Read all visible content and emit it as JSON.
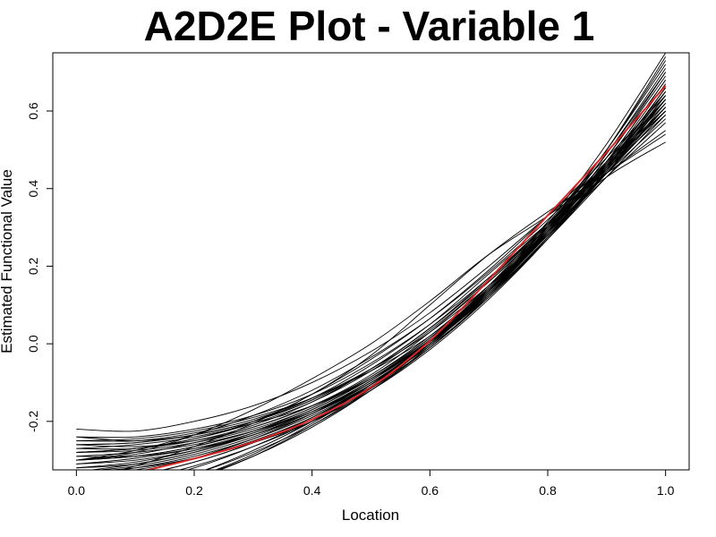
{
  "chart_data": {
    "type": "line",
    "title": "A2D2E Plot - Variable 1",
    "xlabel": "Location",
    "ylabel": "Estimated Functional Value",
    "xlim": [
      -0.04,
      1.04
    ],
    "ylim": [
      -0.325,
      0.75
    ],
    "x_ticks": [
      0.0,
      0.2,
      0.4,
      0.6,
      0.8,
      1.0
    ],
    "x_tick_labels": [
      "0.0",
      "0.2",
      "0.4",
      "0.6",
      "0.8",
      "1.0"
    ],
    "y_ticks": [
      -0.2,
      0.0,
      0.2,
      0.4,
      0.6
    ],
    "y_tick_labels": [
      "-0.2",
      "0.0",
      "0.2",
      "0.4",
      "0.6"
    ],
    "grid": false,
    "x": [
      0.0,
      0.1,
      0.2,
      0.3,
      0.4,
      0.5,
      0.6,
      0.7,
      0.8,
      0.9,
      1.0
    ],
    "colors": {
      "replicates": "#000000",
      "mean": "#d62728"
    },
    "series": [
      {
        "values": [
          -0.37,
          -0.333,
          -0.296,
          -0.253,
          -0.195,
          -0.112,
          0.008,
          0.165,
          0.331,
          0.494,
          0.665
        ],
        "color": "#d62728",
        "highlight": true
      },
      {
        "values": [
          -0.22,
          -0.225,
          -0.2,
          -0.16,
          -0.1,
          -0.02,
          0.08,
          0.2,
          0.33,
          0.46,
          0.6
        ]
      },
      {
        "values": [
          -0.24,
          -0.24,
          -0.22,
          -0.185,
          -0.13,
          -0.05,
          0.05,
          0.17,
          0.31,
          0.46,
          0.61
        ]
      },
      {
        "values": [
          -0.26,
          -0.255,
          -0.235,
          -0.2,
          -0.145,
          -0.065,
          0.04,
          0.165,
          0.31,
          0.465,
          0.63
        ]
      },
      {
        "values": [
          -0.28,
          -0.27,
          -0.245,
          -0.205,
          -0.15,
          -0.07,
          0.035,
          0.16,
          0.3,
          0.45,
          0.61
        ]
      },
      {
        "values": [
          -0.3,
          -0.29,
          -0.265,
          -0.225,
          -0.17,
          -0.09,
          0.015,
          0.145,
          0.295,
          0.455,
          0.63
        ]
      },
      {
        "values": [
          -0.32,
          -0.31,
          -0.28,
          -0.235,
          -0.175,
          -0.095,
          0.01,
          0.14,
          0.29,
          0.455,
          0.64
        ]
      },
      {
        "values": [
          -0.34,
          -0.32,
          -0.29,
          -0.245,
          -0.185,
          -0.105,
          0.0,
          0.13,
          0.285,
          0.46,
          0.66
        ]
      },
      {
        "values": [
          -0.29,
          -0.28,
          -0.26,
          -0.225,
          -0.175,
          -0.1,
          0.0,
          0.125,
          0.275,
          0.44,
          0.62
        ]
      },
      {
        "values": [
          -0.27,
          -0.26,
          -0.24,
          -0.205,
          -0.16,
          -0.09,
          0.005,
          0.125,
          0.27,
          0.43,
          0.59
        ]
      },
      {
        "values": [
          -0.31,
          -0.3,
          -0.275,
          -0.235,
          -0.18,
          -0.1,
          0.005,
          0.135,
          0.29,
          0.465,
          0.67
        ]
      },
      {
        "values": [
          -0.25,
          -0.245,
          -0.225,
          -0.19,
          -0.14,
          -0.07,
          0.02,
          0.14,
          0.28,
          0.43,
          0.57
        ]
      },
      {
        "values": [
          -0.33,
          -0.315,
          -0.285,
          -0.24,
          -0.18,
          -0.1,
          0.005,
          0.135,
          0.295,
          0.48,
          0.69
        ]
      },
      {
        "values": [
          -0.36,
          -0.34,
          -0.305,
          -0.255,
          -0.19,
          -0.105,
          0.0,
          0.135,
          0.3,
          0.49,
          0.71
        ]
      },
      {
        "values": [
          -0.38,
          -0.36,
          -0.32,
          -0.265,
          -0.195,
          -0.105,
          0.005,
          0.14,
          0.305,
          0.5,
          0.73
        ]
      },
      {
        "values": [
          -0.4,
          -0.375,
          -0.335,
          -0.275,
          -0.2,
          -0.105,
          0.01,
          0.15,
          0.315,
          0.515,
          0.75
        ]
      },
      {
        "values": [
          -0.42,
          -0.39,
          -0.345,
          -0.285,
          -0.205,
          -0.11,
          0.005,
          0.145,
          0.31,
          0.5,
          0.72
        ]
      },
      {
        "values": [
          -0.45,
          -0.4,
          -0.35,
          -0.29,
          -0.21,
          -0.115,
          0.0,
          0.14,
          0.305,
          0.49,
          0.7
        ]
      },
      {
        "values": [
          -0.26,
          -0.265,
          -0.25,
          -0.215,
          -0.16,
          -0.08,
          0.03,
          0.16,
          0.3,
          0.44,
          0.58
        ]
      },
      {
        "values": [
          -0.24,
          -0.25,
          -0.235,
          -0.2,
          -0.145,
          -0.065,
          0.04,
          0.17,
          0.31,
          0.45,
          0.59
        ]
      },
      {
        "values": [
          -0.3,
          -0.285,
          -0.255,
          -0.215,
          -0.16,
          -0.085,
          0.015,
          0.14,
          0.285,
          0.44,
          0.6
        ]
      },
      {
        "values": [
          -0.35,
          -0.33,
          -0.295,
          -0.245,
          -0.18,
          -0.095,
          0.01,
          0.14,
          0.295,
          0.47,
          0.65
        ]
      },
      {
        "values": [
          -0.32,
          -0.305,
          -0.275,
          -0.23,
          -0.17,
          -0.09,
          0.01,
          0.135,
          0.28,
          0.445,
          0.63
        ]
      },
      {
        "values": [
          -0.28,
          -0.275,
          -0.255,
          -0.22,
          -0.165,
          -0.085,
          0.02,
          0.15,
          0.3,
          0.46,
          0.62
        ]
      },
      {
        "values": [
          -0.27,
          -0.27,
          -0.25,
          -0.21,
          -0.15,
          -0.065,
          0.04,
          0.165,
          0.305,
          0.455,
          0.6
        ]
      },
      {
        "values": [
          -0.39,
          -0.37,
          -0.335,
          -0.28,
          -0.21,
          -0.12,
          -0.01,
          0.125,
          0.29,
          0.48,
          0.7
        ]
      },
      {
        "values": [
          -0.34,
          -0.325,
          -0.295,
          -0.25,
          -0.19,
          -0.11,
          -0.01,
          0.12,
          0.275,
          0.455,
          0.66
        ]
      },
      {
        "values": [
          -0.29,
          -0.29,
          -0.27,
          -0.235,
          -0.18,
          -0.105,
          -0.005,
          0.12,
          0.27,
          0.44,
          0.63
        ]
      },
      {
        "values": [
          -0.33,
          -0.32,
          -0.295,
          -0.255,
          -0.2,
          -0.12,
          -0.015,
          0.115,
          0.27,
          0.45,
          0.65
        ]
      },
      {
        "values": [
          -0.37,
          -0.35,
          -0.315,
          -0.265,
          -0.2,
          -0.115,
          -0.01,
          0.125,
          0.285,
          0.47,
          0.68
        ]
      },
      {
        "values": [
          -0.3,
          -0.29,
          -0.265,
          -0.225,
          -0.165,
          -0.09,
          0.01,
          0.135,
          0.28,
          0.44,
          0.61
        ]
      },
      {
        "values": [
          -0.25,
          -0.25,
          -0.23,
          -0.195,
          -0.14,
          -0.065,
          0.03,
          0.15,
          0.29,
          0.44,
          0.6
        ]
      },
      {
        "values": [
          -0.41,
          -0.385,
          -0.345,
          -0.29,
          -0.215,
          -0.12,
          -0.005,
          0.135,
          0.305,
          0.5,
          0.74
        ]
      },
      {
        "values": [
          -0.36,
          -0.34,
          -0.305,
          -0.255,
          -0.19,
          -0.105,
          0.0,
          0.13,
          0.29,
          0.47,
          0.68
        ]
      },
      {
        "values": [
          -0.31,
          -0.295,
          -0.27,
          -0.23,
          -0.175,
          -0.1,
          0.0,
          0.125,
          0.275,
          0.445,
          0.64
        ]
      },
      {
        "values": [
          -0.33,
          -0.31,
          -0.28,
          -0.235,
          -0.175,
          -0.095,
          0.005,
          0.13,
          0.28,
          0.455,
          0.65
        ]
      },
      {
        "values": [
          -0.3,
          -0.275,
          -0.235,
          -0.185,
          -0.12,
          -0.035,
          0.065,
          0.185,
          0.32,
          0.47,
          0.63
        ]
      },
      {
        "values": [
          -0.35,
          -0.315,
          -0.265,
          -0.205,
          -0.13,
          -0.04,
          0.065,
          0.19,
          0.33,
          0.48,
          0.64
        ]
      },
      {
        "values": [
          -0.28,
          -0.27,
          -0.245,
          -0.2,
          -0.13,
          -0.03,
          0.1,
          0.23,
          0.34,
          0.44,
          0.54
        ]
      },
      {
        "values": [
          -0.3,
          -0.28,
          -0.235,
          -0.17,
          -0.09,
          0.0,
          0.11,
          0.23,
          0.33,
          0.44,
          0.55
        ]
      },
      {
        "values": [
          -0.26,
          -0.255,
          -0.235,
          -0.2,
          -0.14,
          -0.055,
          0.05,
          0.18,
          0.31,
          0.43,
          0.52
        ]
      }
    ]
  }
}
